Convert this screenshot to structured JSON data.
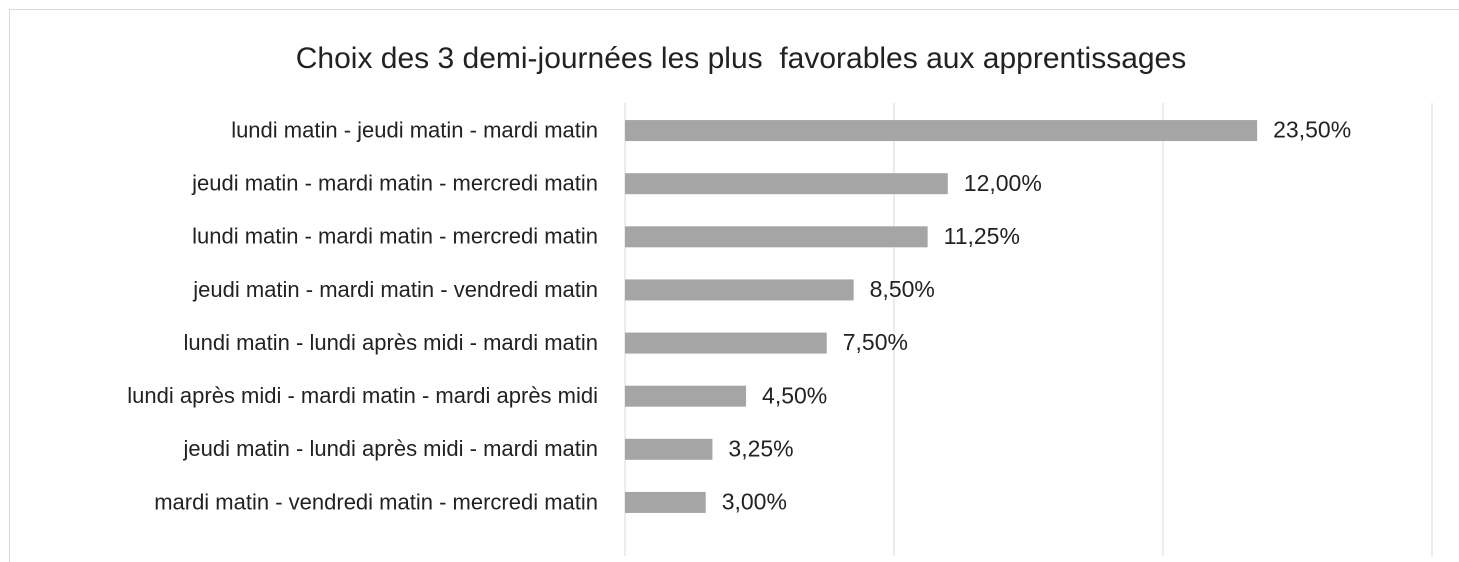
{
  "chart_data": {
    "type": "barh",
    "title": "Choix des 3 demi-journées les plus  favorables aux apprentissages",
    "categories": [
      "lundi matin - jeudi matin - mardi matin",
      "jeudi matin - mardi matin - mercredi matin",
      "lundi matin - mardi matin - mercredi matin",
      "jeudi matin - mardi matin - vendredi matin",
      "lundi matin - lundi après midi - mardi matin",
      "lundi après midi - mardi matin - mardi après midi",
      "jeudi matin - lundi après midi - mardi matin",
      "mardi matin - vendredi matin - mercredi matin"
    ],
    "values": [
      23.5,
      12,
      11.25,
      8.5,
      7.5,
      4.5,
      3.25,
      3
    ],
    "value_labels": [
      "23,50%",
      "12,00%",
      "11,25%",
      "8,50%",
      "7,50%",
      "4,50%",
      "3,25%",
      "3,00%"
    ],
    "color": "#a5a5a5",
    "xlim": [
      0,
      30
    ],
    "xticks": [
      0,
      10,
      20,
      30
    ],
    "grid": true
  }
}
